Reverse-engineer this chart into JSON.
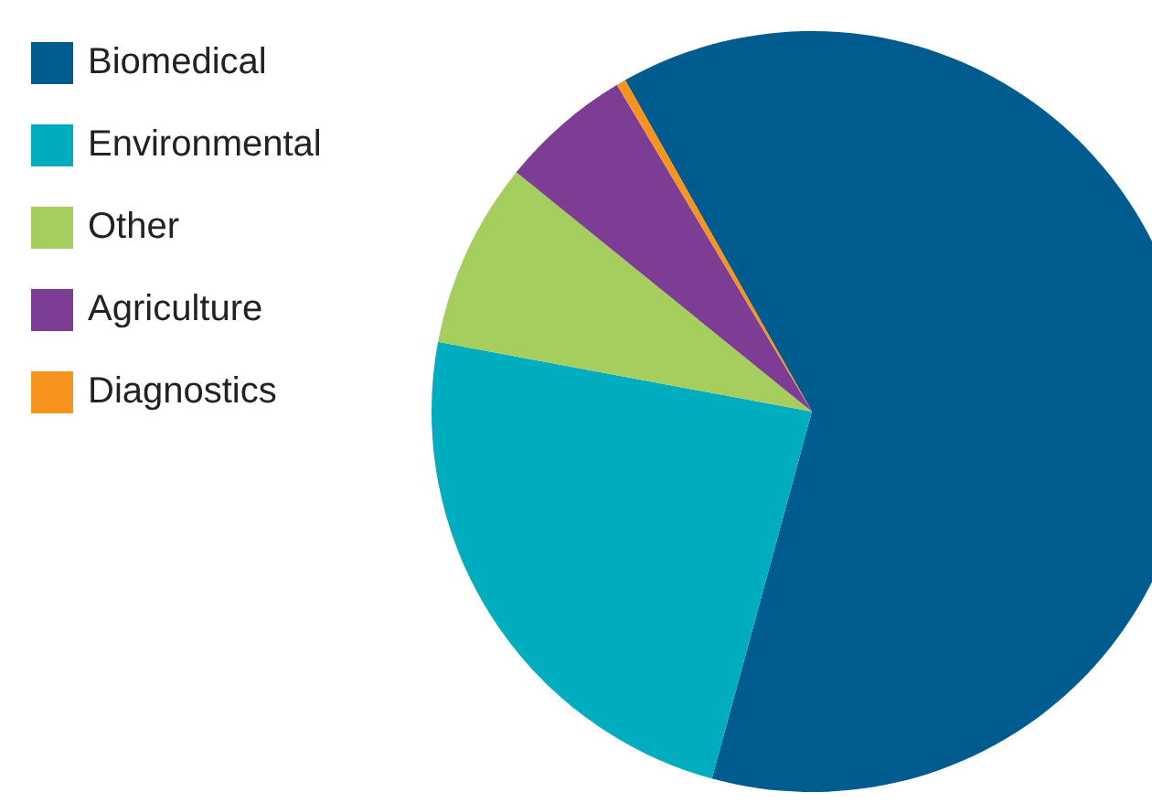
{
  "chart_data": {
    "type": "pie",
    "categories": [
      "Biomedical",
      "Environmental",
      "Other",
      "Agriculture",
      "Diagnostics"
    ],
    "values": [
      62.4,
      23.7,
      7.9,
      5.6,
      0.4
    ],
    "colors": [
      "#005b8f",
      "#00adbf",
      "#a6ce5f",
      "#7e3d94",
      "#f7941d"
    ],
    "legend": "top left"
  }
}
